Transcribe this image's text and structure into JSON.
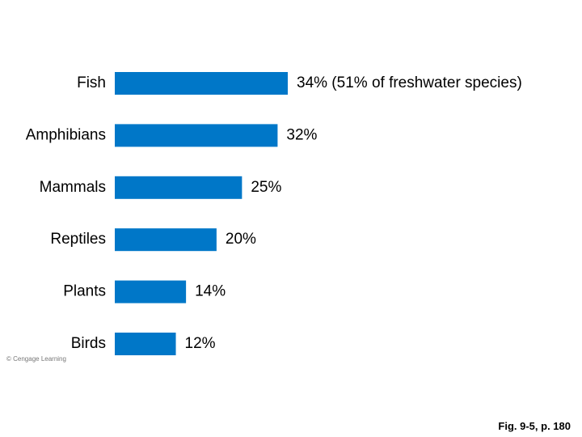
{
  "chart_data": {
    "type": "bar",
    "orientation": "horizontal",
    "categories": [
      "Fish",
      "Amphibians",
      "Mammals",
      "Reptiles",
      "Plants",
      "Birds"
    ],
    "values": [
      34,
      32,
      25,
      20,
      14,
      12
    ],
    "value_labels": [
      "34% (51% of freshwater species)",
      "32%",
      "25%",
      "20%",
      "14%",
      "12%"
    ],
    "title": "",
    "xlabel": "",
    "ylabel": "",
    "xlim": [
      0,
      34
    ],
    "grid": false,
    "legend": "none",
    "bar_color": "#0077C8"
  },
  "credit": "© Cengage Learning",
  "caption": "Fig. 9-5, p. 180"
}
